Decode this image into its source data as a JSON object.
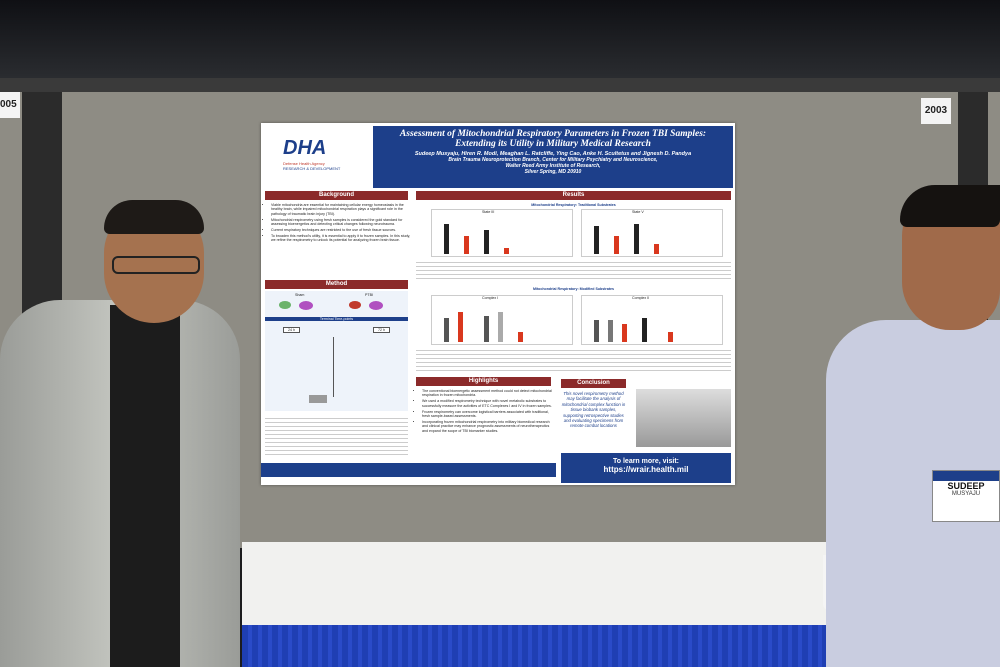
{
  "booth_numbers": [
    "005",
    "2003"
  ],
  "poster": {
    "logo": "DHA",
    "logo_subtitle": "Defense Health Agency",
    "logo_tagline": "RESEARCH & DEVELOPMENT",
    "title": "Assessment of Mitochondrial Respiratory Parameters in Frozen TBI Samples: Extending its Utility in Military Medical Research",
    "authors": "Sudeep Musyaju, Hiren R. Modi, Meaghan L. Ratcliffe, Ying Cao, Anke H. Scultetus and Jignesh D. Pandya",
    "affiliation": [
      "Brain Trauma Neuroprotection Branch, Center for Military Psychiatry and Neuroscience,",
      "Walter Reed Army Institute of Research,",
      "Silver Spring, MD 20910"
    ],
    "background": {
      "heading": "Background",
      "bullets": [
        "Viable mitochondria are essential for maintaining cellular energy homeostasis in the healthy brain, while impaired mitochondrial respiration plays a significant role in the pathology of traumatic brain injury (TBI).",
        "Mitochondrial respirometry using fresh samples is considered the gold standard for assessing bioenergetics and detecting critical changes following neurotrauma.",
        "Current respiratory techniques are restricted to the use of fresh tissue sources.",
        "To broaden this method's utility, it is essential to apply it to frozen samples. In this study, we refine the respirometry to unlock its potential for analyzing frozen brain tissue."
      ]
    },
    "method": {
      "heading": "Method",
      "groups": [
        "Sham",
        "PTBI"
      ],
      "timepoints_label": "Terminal Time-points",
      "timepoints": [
        "24 h",
        "72 h"
      ]
    },
    "results": {
      "heading": "Results",
      "traditional": {
        "heading": "Mitochondrial Respiratory: Traditional Substrates",
        "panels": [
          "State III",
          "State V"
        ]
      },
      "modified": {
        "heading": "Mitochondrial Respiratory: Modified Substrates",
        "panels": [
          "Complex I",
          "Complex II"
        ]
      }
    },
    "highlights": {
      "heading": "Highlights",
      "bullets": [
        "The conventional bioenergetic assessment method could not detect mitochondrial respiration in frozen mitochondria.",
        "We used a modified respirometry technique with novel metabolic substrates to successfully measure the activities of ETC Complexes I and IV in frozen samples.",
        "Frozen respirometry can overcome logistical barriers associated with traditional, fresh sample-based assessments.",
        "Incorporating frozen mitochondrial respirometry into military biomedical research and clinical practice may enhance prognostic assessments of neurotherapeutics and expand the scope of TBI biomarker studies."
      ]
    },
    "conclusion": {
      "heading": "Conclusion",
      "text": "This novel respirometry method may facilitate the analysis of mitochondrial complex function in tissue biobank samples, supporting retrospective studies and evaluating specimens from remote combat locations"
    },
    "learn_more": "To learn more, visit:",
    "url": "https://wrair.health.mil"
  },
  "badge": {
    "first": "SUDEEP",
    "last": "MUSYAJU"
  }
}
